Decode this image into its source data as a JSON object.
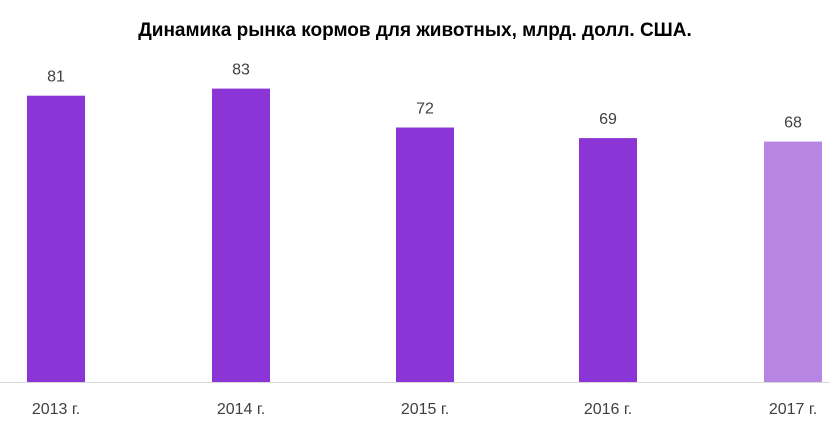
{
  "chart_data": {
    "type": "bar",
    "title": "Динамика рынка кормов для животных, млрд. долл. США.",
    "categories": [
      "2013 г.",
      "2014 г.",
      "2015 г.",
      "2016 г.",
      "2017 г."
    ],
    "values": [
      81,
      83,
      72,
      69,
      68
    ],
    "value_labels": [
      "81",
      "83",
      "72",
      "69",
      "68"
    ],
    "bar_colors": [
      "#8b35d6",
      "#8b35d6",
      "#8b35d6",
      "#8b35d6",
      "#b985e3"
    ],
    "xlabel": "",
    "ylabel": "",
    "ylim": [
      0,
      85
    ],
    "grid": false,
    "legend": "none",
    "axis_color": "#d9d9d9"
  }
}
